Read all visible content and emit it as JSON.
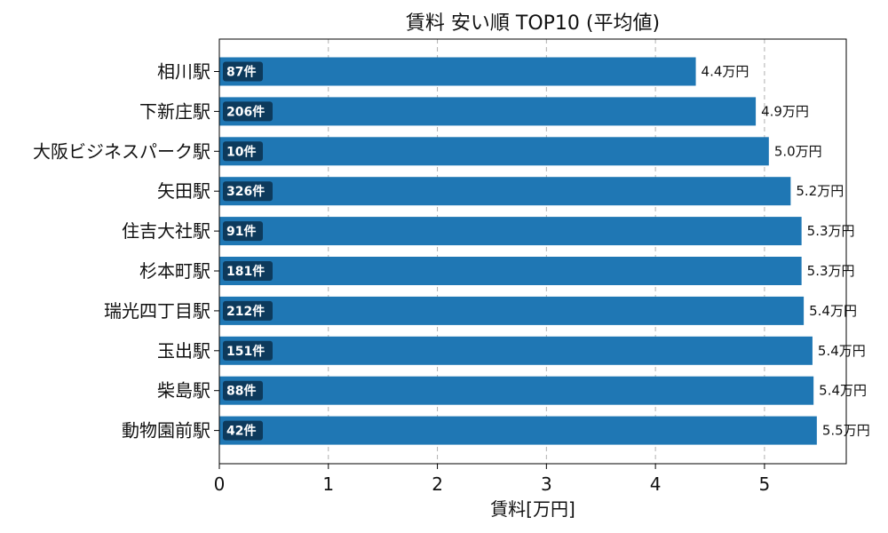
{
  "chart_data": {
    "type": "bar",
    "orientation": "horizontal",
    "title": "賃料 安い順 TOP10 (平均値)",
    "xlabel": "賃料[万円]",
    "ylabel": "",
    "xlim": [
      0,
      5.75
    ],
    "xticks": [
      "0",
      "1",
      "2",
      "3",
      "4",
      "5"
    ],
    "grid": "x-dashed",
    "bar_color": "#1f77b4",
    "badge_color": "#0d3a5c",
    "categories": [
      "相川駅",
      "下新庄駅",
      "大阪ビジネスパーク駅",
      "矢田駅",
      "住吉大社駅",
      "杉本町駅",
      "瑞光四丁目駅",
      "玉出駅",
      "柴島駅",
      "動物園前駅"
    ],
    "values": [
      4.37,
      4.92,
      5.04,
      5.24,
      5.34,
      5.34,
      5.36,
      5.44,
      5.45,
      5.48
    ],
    "value_labels": [
      "4.4万円",
      "4.9万円",
      "5.0万円",
      "5.2万円",
      "5.3万円",
      "5.3万円",
      "5.4万円",
      "5.4万円",
      "5.4万円",
      "5.5万円"
    ],
    "count_labels": [
      "87件",
      "206件",
      "10件",
      "326件",
      "91件",
      "181件",
      "212件",
      "151件",
      "88件",
      "42件"
    ]
  }
}
